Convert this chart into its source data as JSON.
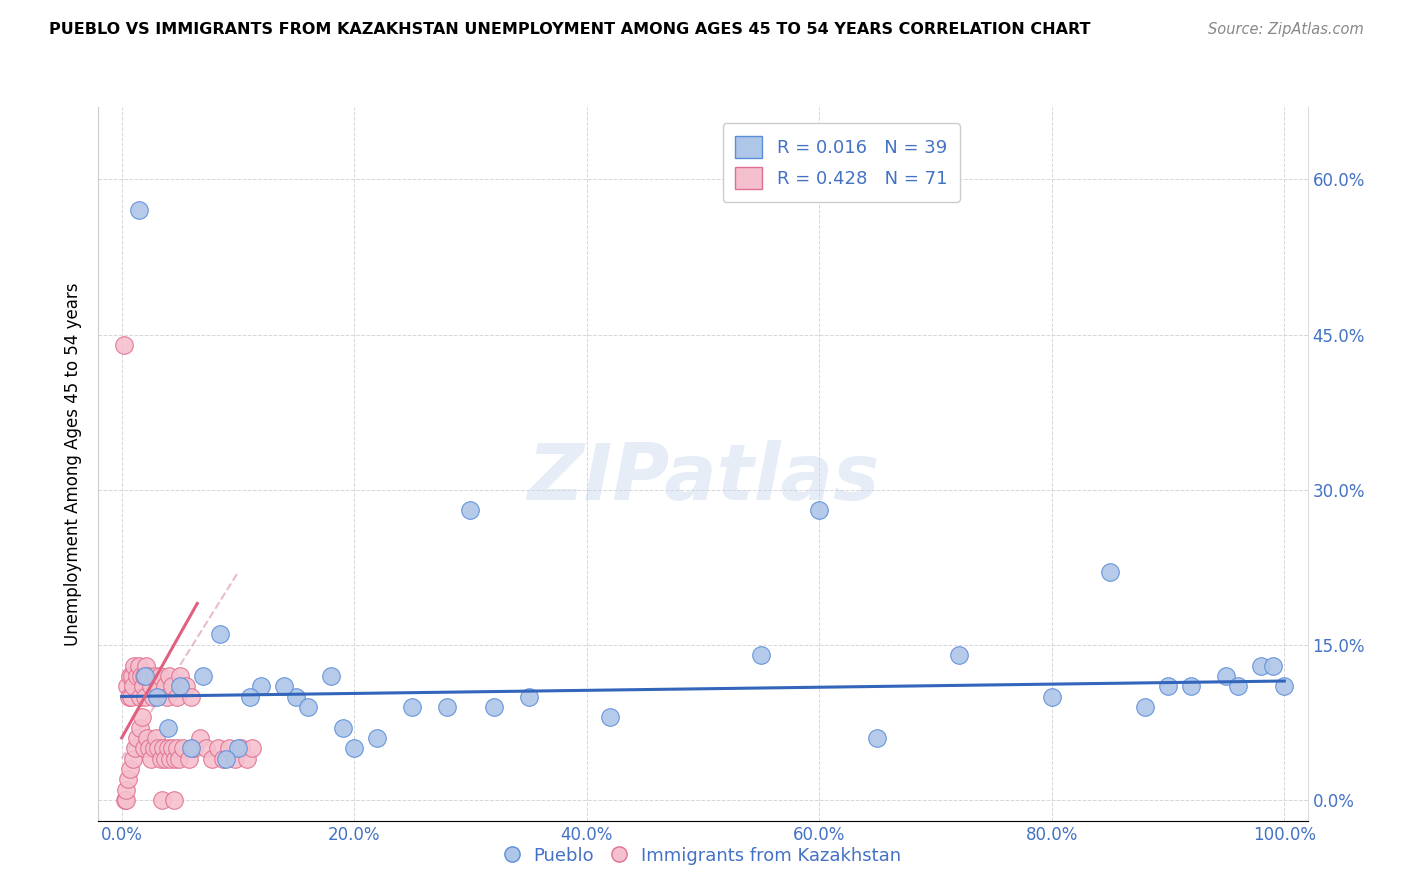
{
  "title": "PUEBLO VS IMMIGRANTS FROM KAZAKHSTAN UNEMPLOYMENT AMONG AGES 45 TO 54 YEARS CORRELATION CHART",
  "source": "Source: ZipAtlas.com",
  "tick_color": "#4472c4",
  "ylabel": "Unemployment Among Ages 45 to 54 years",
  "x_tick_labels": [
    "0.0%",
    "20.0%",
    "40.0%",
    "60.0%",
    "80.0%",
    "100.0%"
  ],
  "x_tick_values": [
    0,
    20,
    40,
    60,
    80,
    100
  ],
  "y_tick_labels": [
    "0.0%",
    "15.0%",
    "30.0%",
    "45.0%",
    "60.0%"
  ],
  "y_tick_values": [
    0,
    15,
    30,
    45,
    60
  ],
  "xlim": [
    -2,
    102
  ],
  "ylim": [
    -2,
    67
  ],
  "pueblo_color": "#aec6e8",
  "pueblo_edge_color": "#5b8dd9",
  "kazakh_color": "#f5c0ce",
  "kazakh_edge_color": "#e07090",
  "regression_blue_color": "#3366bb",
  "regression_pink_solid_color": "#e06080",
  "regression_pink_dashed_color": "#e0a0b8",
  "legend_R_blue": "R = 0.016",
  "legend_N_blue": "N = 39",
  "legend_R_pink": "R = 0.428",
  "legend_N_pink": "N = 71",
  "watermark_text": "ZIPatlas",
  "pueblo_scatter_x": [
    1.5,
    3.0,
    5.0,
    7.0,
    8.5,
    10.0,
    12.0,
    15.0,
    18.0,
    20.0,
    25.0,
    30.0,
    32.0,
    35.0,
    42.0,
    55.0,
    60.0,
    65.0,
    72.0,
    80.0,
    85.0,
    88.0,
    90.0,
    92.0,
    95.0,
    96.0,
    98.0,
    99.0,
    100.0,
    2.0,
    4.0,
    6.0,
    9.0,
    11.0,
    14.0,
    16.0,
    19.0,
    22.0,
    28.0
  ],
  "pueblo_scatter_y": [
    57,
    10,
    11,
    12,
    16,
    5,
    11,
    10,
    12,
    5,
    9,
    28,
    9,
    10,
    8,
    14,
    28,
    6,
    14,
    10,
    22,
    9,
    11,
    11,
    12,
    11,
    13,
    13,
    11,
    12,
    7,
    5,
    4,
    10,
    11,
    9,
    7,
    6,
    9
  ],
  "kazakh_scatter_x": [
    0.2,
    0.3,
    0.4,
    0.5,
    0.6,
    0.7,
    0.8,
    0.9,
    1.0,
    1.1,
    1.3,
    1.5,
    1.6,
    1.7,
    1.8,
    1.9,
    2.0,
    2.1,
    2.3,
    2.5,
    2.7,
    2.9,
    3.1,
    3.3,
    3.5,
    3.7,
    3.9,
    4.1,
    4.3,
    4.5,
    4.8,
    5.0,
    5.5,
    6.0,
    0.35,
    0.55,
    0.75,
    0.95,
    1.15,
    1.35,
    1.55,
    1.75,
    1.95,
    2.15,
    2.35,
    2.55,
    2.75,
    2.95,
    3.15,
    3.35,
    3.55,
    3.75,
    3.95,
    4.15,
    4.35,
    4.55,
    4.75,
    4.95,
    5.25,
    5.75,
    6.25,
    6.75,
    7.25,
    7.75,
    8.25,
    8.75,
    9.25,
    9.75,
    10.25,
    10.75,
    11.25
  ],
  "kazakh_scatter_y": [
    44,
    0,
    0,
    11,
    10,
    12,
    10,
    12,
    11,
    13,
    12,
    13,
    10,
    12,
    11,
    12,
    10,
    13,
    12,
    11,
    10,
    12,
    11,
    12,
    0,
    11,
    10,
    12,
    11,
    0,
    10,
    12,
    11,
    10,
    1,
    2,
    3,
    4,
    5,
    6,
    7,
    8,
    5,
    6,
    5,
    4,
    5,
    6,
    5,
    4,
    5,
    4,
    5,
    4,
    5,
    4,
    5,
    4,
    5,
    4,
    5,
    6,
    5,
    4,
    5,
    4,
    5,
    4,
    5,
    4,
    5
  ]
}
